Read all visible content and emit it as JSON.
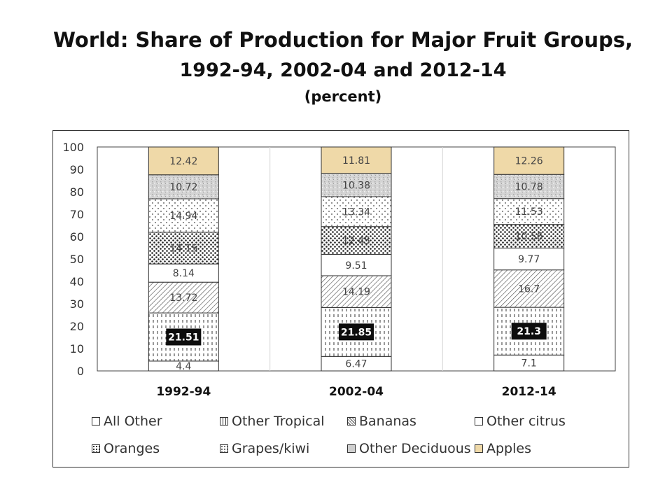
{
  "chart_data": {
    "type": "bar",
    "stacked": true,
    "title": "World: Share of Production for Major Fruit Groups,",
    "subtitle": "1992-94, 2002-04 and 2012-14",
    "unit_label": "(percent)",
    "categories": [
      "1992-94",
      "2002-04",
      "2012-14"
    ],
    "ylim": [
      0,
      100
    ],
    "yticks": [
      "0",
      "10",
      "20",
      "30",
      "40",
      "50",
      "60",
      "70",
      "80",
      "90",
      "100"
    ],
    "series": [
      {
        "name": "All Other",
        "values": [
          4.4,
          6.47,
          7.1
        ],
        "labels": [
          "4.4",
          "6.47",
          "7.1"
        ],
        "pattern": "none",
        "label_style": "plain"
      },
      {
        "name": "Other Tropical",
        "values": [
          21.51,
          21.85,
          21.3
        ],
        "labels": [
          "21.51",
          "21.85",
          "21.3"
        ],
        "pattern": "dashes",
        "label_style": "boxed"
      },
      {
        "name": "Bananas",
        "values": [
          13.72,
          14.19,
          16.7
        ],
        "labels": [
          "13.72",
          "14.19",
          "16.7"
        ],
        "pattern": "diagonal",
        "label_style": "plain"
      },
      {
        "name": "Other citrus",
        "values": [
          8.14,
          9.51,
          9.77
        ],
        "labels": [
          "8.14",
          "9.51",
          "9.77"
        ],
        "pattern": "none",
        "label_style": "plain"
      },
      {
        "name": "Oranges",
        "values": [
          14.15,
          12.45,
          10.56
        ],
        "labels": [
          "14.15",
          "12.45",
          "10.56"
        ],
        "pattern": "dots-heavy",
        "label_style": "plain"
      },
      {
        "name": "Grapes/kiwi",
        "values": [
          14.94,
          13.34,
          11.53
        ],
        "labels": [
          "14.94",
          "13.34",
          "11.53"
        ],
        "pattern": "dots-light",
        "label_style": "plain"
      },
      {
        "name": "Other Deciduous",
        "values": [
          10.72,
          10.38,
          10.78
        ],
        "labels": [
          "10.72",
          "10.38",
          "10.78"
        ],
        "pattern": "speckle",
        "label_style": "plain"
      },
      {
        "name": "Apples",
        "values": [
          12.42,
          11.81,
          12.26
        ],
        "labels": [
          "12.42",
          "11.81",
          "12.26"
        ],
        "pattern": "tan",
        "label_style": "plain"
      }
    ],
    "legend_position": "bottom",
    "grid": "vertical"
  },
  "legend": {
    "items": [
      "All Other",
      "Other Tropical",
      "Bananas",
      "Other citrus",
      "Oranges",
      "Grapes/kiwi",
      "Other Deciduous",
      "Apples"
    ]
  },
  "colors": {
    "apples": "#efd9a8",
    "box_label_bg": "#0d0d0d",
    "border": "#333333"
  }
}
